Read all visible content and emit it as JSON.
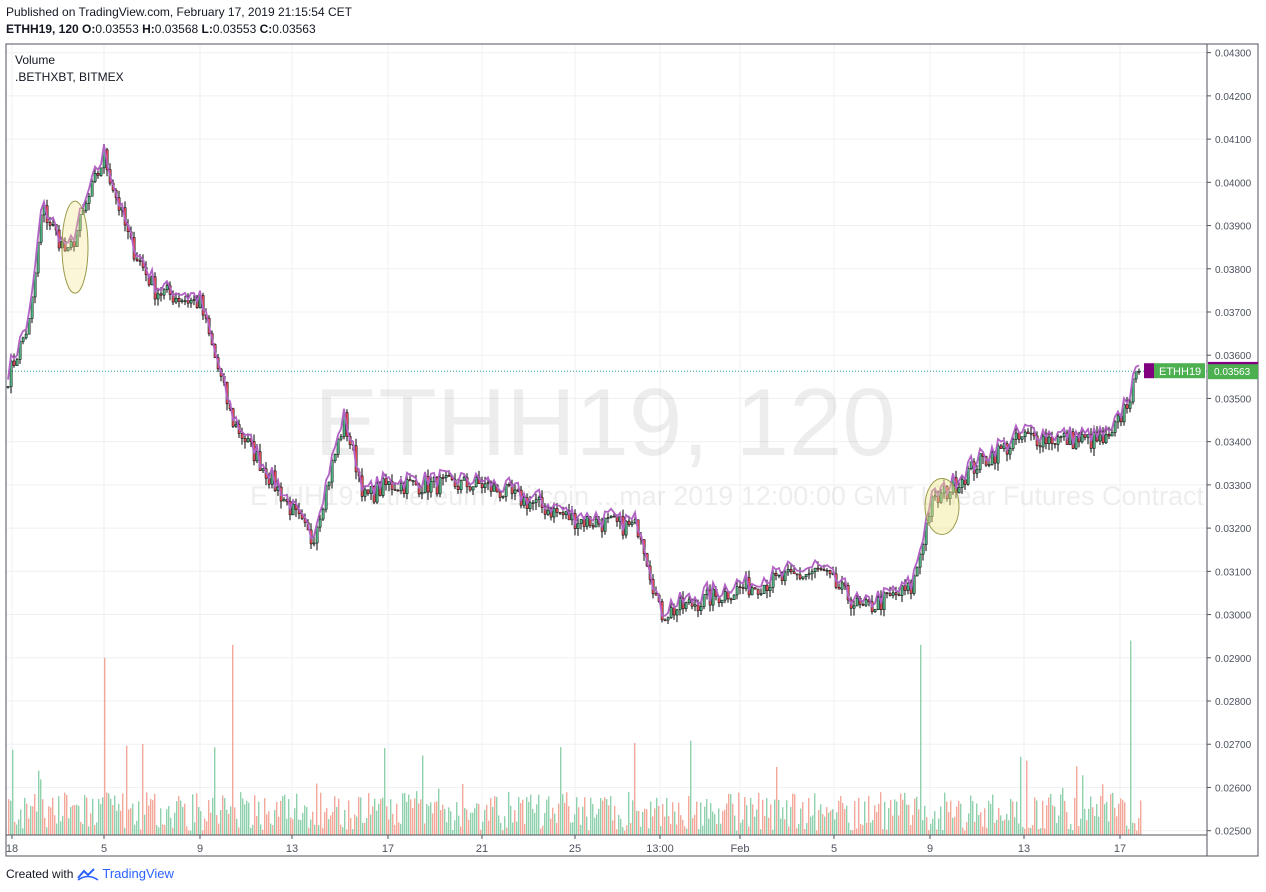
{
  "header": {
    "published": "Published on TradingView.com, February 17, 2019 21:15:54 CET",
    "symbol": "ETHH19, 120",
    "o_label": "O:",
    "o_value": "0.03553",
    "h_label": "H:",
    "h_value": "0.03568",
    "l_label": "L:",
    "l_value": "0.03553",
    "c_label": "C:",
    "c_value": "0.03563"
  },
  "indicators": [
    "Volume",
    ".BETHXBT, BITMEX"
  ],
  "watermark": {
    "line1": "ETHH19, 120",
    "line2": "ETHH19: Ethereum / Bitcoin ...mar 2019 12:00:00 GMT Linear Futures Contract"
  },
  "footer": {
    "created_with": "Created with",
    "brand": "TradingView"
  },
  "colors": {
    "up": "#53b987",
    "down": "#eb4d5c",
    "index_line": "#b162c4",
    "vol_up": "#8fd1ad",
    "vol_down": "#f3a899",
    "grid": "#eef0f3",
    "last_price_line": "#26a69a",
    "marker": "#f0e68c"
  },
  "badges": [
    {
      "name": "index-price-badge",
      "value": "0.03566",
      "color": "#800080"
    },
    {
      "name": "last-price-badge",
      "value": "0.03563",
      "color": "#4caf50"
    },
    {
      "name": "series-label-badge",
      "value": "ETHH19",
      "color": "#4caf50"
    }
  ],
  "chart_data": {
    "type": "candlestick",
    "title": "ETHH19, 120",
    "y_axis": {
      "range": [
        0.0249,
        0.0432
      ],
      "ticks": [
        "0.04300",
        "0.04200",
        "0.04100",
        "0.04000",
        "0.03900",
        "0.03800",
        "0.03700",
        "0.03600",
        "0.03500",
        "0.03400",
        "0.03300",
        "0.03200",
        "0.03100",
        "0.03000",
        "0.02900",
        "0.02800",
        "0.02700",
        "0.02600",
        "0.02500"
      ]
    },
    "x_axis": {
      "ticks": [
        "18",
        "5",
        "9",
        "13",
        "17",
        "21",
        "25",
        "13:00",
        "Feb",
        "5",
        "9",
        "13",
        "17"
      ]
    },
    "price_keypoints": [
      [
        "18",
        0.0355
      ],
      [
        "Dec 21",
        0.0368
      ],
      [
        "Dec 22",
        0.0394
      ],
      [
        "Dec 24",
        0.0383
      ],
      [
        "5",
        0.0406
      ],
      [
        "Dec 27",
        0.0386
      ],
      [
        "Dec 28",
        0.0375
      ],
      [
        "9",
        0.0372
      ],
      [
        "Dec 31",
        0.0345
      ],
      [
        "13",
        0.0317
      ],
      [
        "Jan 3",
        0.0345
      ],
      [
        "Jan 4",
        0.0327
      ],
      [
        "17",
        0.033
      ],
      [
        "21",
        0.033
      ],
      [
        "25",
        0.0322
      ],
      [
        "Jan 29",
        0.032
      ],
      [
        "13:00",
        0.03
      ],
      [
        "Feb",
        0.0306
      ],
      [
        "5",
        0.031
      ],
      [
        "Feb 6",
        0.0301
      ],
      [
        "Feb 8",
        0.0306
      ],
      [
        "9",
        0.0325
      ],
      [
        "Feb 11",
        0.0335
      ],
      [
        "13",
        0.0341
      ],
      [
        "Feb 16",
        0.034
      ],
      [
        "17",
        0.03563
      ]
    ],
    "index_series": {
      "name": ".BETHXBT",
      "offset_above_price": 0.00013
    },
    "volume_spikes": [
      [
        "5",
        0.029
      ],
      [
        "Dec 31",
        0.0293
      ],
      [
        "Feb 8",
        0.0293
      ],
      [
        "17",
        0.0294
      ]
    ],
    "last_price": 0.03563,
    "index_last": 0.03566
  }
}
